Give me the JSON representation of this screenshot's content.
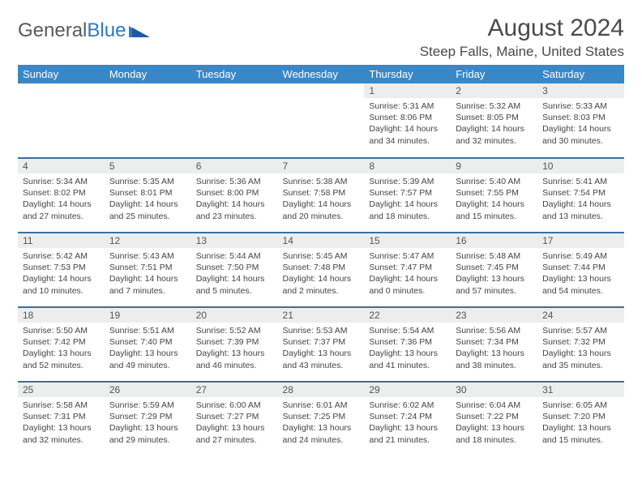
{
  "brand": {
    "part1": "General",
    "part2": "Blue"
  },
  "title": "August 2024",
  "location": "Steep Falls, Maine, United States",
  "colors": {
    "header_bg": "#3a87c7",
    "row_divider": "#3a6fa0",
    "daynum_bg": "#eceded",
    "text": "#444444",
    "brand_gray": "#5a5a5a",
    "brand_blue": "#2f78c4"
  },
  "weekdays": [
    "Sunday",
    "Monday",
    "Tuesday",
    "Wednesday",
    "Thursday",
    "Friday",
    "Saturday"
  ],
  "first_weekday_index": 4,
  "last_day": 31,
  "days": {
    "1": {
      "sunrise": "5:31 AM",
      "sunset": "8:06 PM",
      "daylight": "14 hours and 34 minutes."
    },
    "2": {
      "sunrise": "5:32 AM",
      "sunset": "8:05 PM",
      "daylight": "14 hours and 32 minutes."
    },
    "3": {
      "sunrise": "5:33 AM",
      "sunset": "8:03 PM",
      "daylight": "14 hours and 30 minutes."
    },
    "4": {
      "sunrise": "5:34 AM",
      "sunset": "8:02 PM",
      "daylight": "14 hours and 27 minutes."
    },
    "5": {
      "sunrise": "5:35 AM",
      "sunset": "8:01 PM",
      "daylight": "14 hours and 25 minutes."
    },
    "6": {
      "sunrise": "5:36 AM",
      "sunset": "8:00 PM",
      "daylight": "14 hours and 23 minutes."
    },
    "7": {
      "sunrise": "5:38 AM",
      "sunset": "7:58 PM",
      "daylight": "14 hours and 20 minutes."
    },
    "8": {
      "sunrise": "5:39 AM",
      "sunset": "7:57 PM",
      "daylight": "14 hours and 18 minutes."
    },
    "9": {
      "sunrise": "5:40 AM",
      "sunset": "7:55 PM",
      "daylight": "14 hours and 15 minutes."
    },
    "10": {
      "sunrise": "5:41 AM",
      "sunset": "7:54 PM",
      "daylight": "14 hours and 13 minutes."
    },
    "11": {
      "sunrise": "5:42 AM",
      "sunset": "7:53 PM",
      "daylight": "14 hours and 10 minutes."
    },
    "12": {
      "sunrise": "5:43 AM",
      "sunset": "7:51 PM",
      "daylight": "14 hours and 7 minutes."
    },
    "13": {
      "sunrise": "5:44 AM",
      "sunset": "7:50 PM",
      "daylight": "14 hours and 5 minutes."
    },
    "14": {
      "sunrise": "5:45 AM",
      "sunset": "7:48 PM",
      "daylight": "14 hours and 2 minutes."
    },
    "15": {
      "sunrise": "5:47 AM",
      "sunset": "7:47 PM",
      "daylight": "14 hours and 0 minutes."
    },
    "16": {
      "sunrise": "5:48 AM",
      "sunset": "7:45 PM",
      "daylight": "13 hours and 57 minutes."
    },
    "17": {
      "sunrise": "5:49 AM",
      "sunset": "7:44 PM",
      "daylight": "13 hours and 54 minutes."
    },
    "18": {
      "sunrise": "5:50 AM",
      "sunset": "7:42 PM",
      "daylight": "13 hours and 52 minutes."
    },
    "19": {
      "sunrise": "5:51 AM",
      "sunset": "7:40 PM",
      "daylight": "13 hours and 49 minutes."
    },
    "20": {
      "sunrise": "5:52 AM",
      "sunset": "7:39 PM",
      "daylight": "13 hours and 46 minutes."
    },
    "21": {
      "sunrise": "5:53 AM",
      "sunset": "7:37 PM",
      "daylight": "13 hours and 43 minutes."
    },
    "22": {
      "sunrise": "5:54 AM",
      "sunset": "7:36 PM",
      "daylight": "13 hours and 41 minutes."
    },
    "23": {
      "sunrise": "5:56 AM",
      "sunset": "7:34 PM",
      "daylight": "13 hours and 38 minutes."
    },
    "24": {
      "sunrise": "5:57 AM",
      "sunset": "7:32 PM",
      "daylight": "13 hours and 35 minutes."
    },
    "25": {
      "sunrise": "5:58 AM",
      "sunset": "7:31 PM",
      "daylight": "13 hours and 32 minutes."
    },
    "26": {
      "sunrise": "5:59 AM",
      "sunset": "7:29 PM",
      "daylight": "13 hours and 29 minutes."
    },
    "27": {
      "sunrise": "6:00 AM",
      "sunset": "7:27 PM",
      "daylight": "13 hours and 27 minutes."
    },
    "28": {
      "sunrise": "6:01 AM",
      "sunset": "7:25 PM",
      "daylight": "13 hours and 24 minutes."
    },
    "29": {
      "sunrise": "6:02 AM",
      "sunset": "7:24 PM",
      "daylight": "13 hours and 21 minutes."
    },
    "30": {
      "sunrise": "6:04 AM",
      "sunset": "7:22 PM",
      "daylight": "13 hours and 18 minutes."
    },
    "31": {
      "sunrise": "6:05 AM",
      "sunset": "7:20 PM",
      "daylight": "13 hours and 15 minutes."
    }
  },
  "labels": {
    "sunrise": "Sunrise:",
    "sunset": "Sunset:",
    "daylight": "Daylight:"
  }
}
